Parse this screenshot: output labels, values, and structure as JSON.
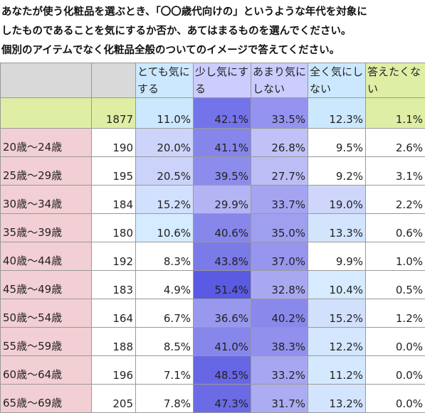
{
  "header": {
    "title_lines": [
      "あなたが使う化粧品を選ぶとき、「〇〇歳代向けの」というような年代を対象に",
      "したものであることを気にするか否か、あてはまるものを選んでください。",
      "個別のアイテムでなく化粧品全般のついてのイメージで答えてください。"
    ]
  },
  "table": {
    "columns": [
      "",
      "",
      "とても気にする",
      "少し気にする",
      "あまり気にしない",
      "全く気にしない",
      "答えたくない"
    ],
    "total": [
      "",
      "1877",
      "11.0%",
      "42.1%",
      "33.5%",
      "12.3%",
      "1.1%"
    ],
    "rows": [
      [
        "20歳～24歳",
        "190",
        "20.0%",
        "41.1%",
        "26.8%",
        "9.5%",
        "2.6%"
      ],
      [
        "25歳～29歳",
        "195",
        "20.5%",
        "39.5%",
        "27.7%",
        "9.2%",
        "3.1%"
      ],
      [
        "30歳～34歳",
        "184",
        "15.2%",
        "29.9%",
        "33.7%",
        "19.0%",
        "2.2%"
      ],
      [
        "35歳～39歳",
        "180",
        "10.6%",
        "40.6%",
        "35.0%",
        "13.3%",
        "0.6%"
      ],
      [
        "40歳～44歳",
        "192",
        "8.3%",
        "43.8%",
        "37.0%",
        "9.9%",
        "1.0%"
      ],
      [
        "45歳～49歳",
        "183",
        "4.9%",
        "51.4%",
        "32.8%",
        "10.4%",
        "0.5%"
      ],
      [
        "50歳～54歳",
        "164",
        "6.7%",
        "36.6%",
        "40.2%",
        "15.2%",
        "1.2%"
      ],
      [
        "55歳～59歳",
        "188",
        "8.5%",
        "41.0%",
        "38.3%",
        "12.2%",
        "0.0%"
      ],
      [
        "60歳～64歳",
        "196",
        "7.1%",
        "48.5%",
        "33.2%",
        "11.2%",
        "0.0%"
      ],
      [
        "65歳～69歳",
        "205",
        "7.8%",
        "47.3%",
        "31.7%",
        "13.2%",
        "0.0%"
      ]
    ]
  }
}
